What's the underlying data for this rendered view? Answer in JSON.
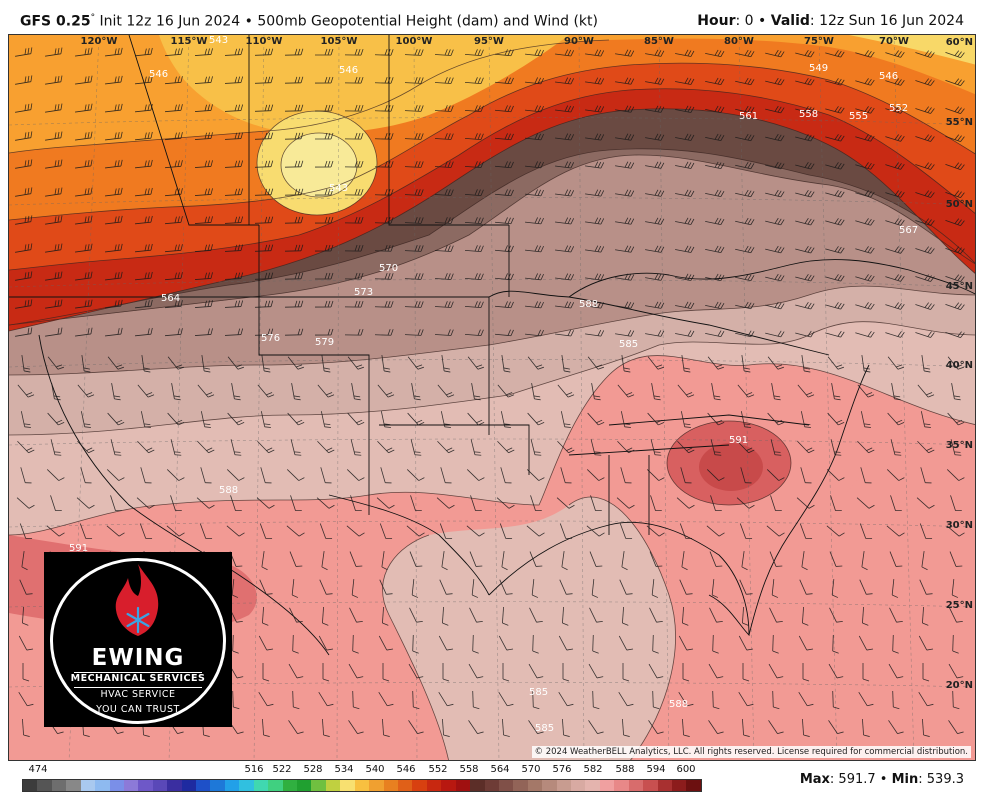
{
  "header": {
    "model": "GFS 0.25",
    "degree_mark": "°",
    "init_text": "Init 12z 16 Jun 2024",
    "bullet": "•",
    "product": "500mb Geopotential Height (dam) and Wind (kt)",
    "hour_label": "Hour",
    "hour_value": ": 0",
    "valid_label": "Valid",
    "valid_value": ": 12z Sun 16 Jun 2024"
  },
  "map": {
    "longitude_labels": [
      "120°W",
      "115°W",
      "110°W",
      "105°W",
      "100°W",
      "95°W",
      "90°W",
      "85°W",
      "80°W",
      "75°W",
      "70°W"
    ],
    "latitude_labels": [
      "60°N",
      "55°N",
      "50°N",
      "45°N",
      "40°N",
      "35°N",
      "30°N",
      "25°N",
      "20°N"
    ],
    "contour_labels": [
      "543",
      "546",
      "546",
      "543",
      "549",
      "546",
      "552",
      "555",
      "558",
      "561",
      "567",
      "564",
      "570",
      "573",
      "576",
      "579",
      "585",
      "588",
      "588",
      "591",
      "591",
      "585",
      "585",
      "588"
    ],
    "copyright": "© 2024 WeatherBELL Analytics, LLC. All rights reserved. License required for commercial distribution."
  },
  "logo": {
    "name": "EWING",
    "line1": "MECHANICAL SERVICES",
    "line2": "HVAC SERVICE",
    "line3": "YOU CAN TRUST",
    "flame_color": "#d81e2c",
    "snowflake_color": "#3aa3e3"
  },
  "legend": {
    "labels": [
      "474",
      "516",
      "522",
      "528",
      "534",
      "540",
      "546",
      "552",
      "558",
      "564",
      "570",
      "576",
      "582",
      "588",
      "594",
      "600"
    ],
    "colors": [
      "#3c3c3c",
      "#555555",
      "#6e6e6e",
      "#888888",
      "#a9c9ef",
      "#8ebaf0",
      "#7a8fe8",
      "#8c7ad8",
      "#6e58c8",
      "#5a48b8",
      "#3a2ea0",
      "#1e2aa0",
      "#1e50c8",
      "#1e78d8",
      "#22a0e8",
      "#30c0e0",
      "#40d8b0",
      "#40d080",
      "#30b040",
      "#20a030",
      "#70c040",
      "#c0d040",
      "#f8e070",
      "#f8c040",
      "#f0a030",
      "#e88020",
      "#e06018",
      "#d84010",
      "#c82810",
      "#b81810",
      "#a01010",
      "#5c2e28",
      "#6e3c36",
      "#805048",
      "#926458",
      "#a47868",
      "#b68a7c",
      "#c89c90",
      "#d8aaa2",
      "#e4b4ae",
      "#f0a0a0",
      "#e88888",
      "#d86c6c",
      "#c85050",
      "#a83030",
      "#8c1c1c",
      "#6c1010"
    ]
  },
  "stats": {
    "max_label": "Max",
    "max_value": ": 591.7",
    "bullet": "•",
    "min_label": "Min",
    "min_value": ": 539.3"
  }
}
